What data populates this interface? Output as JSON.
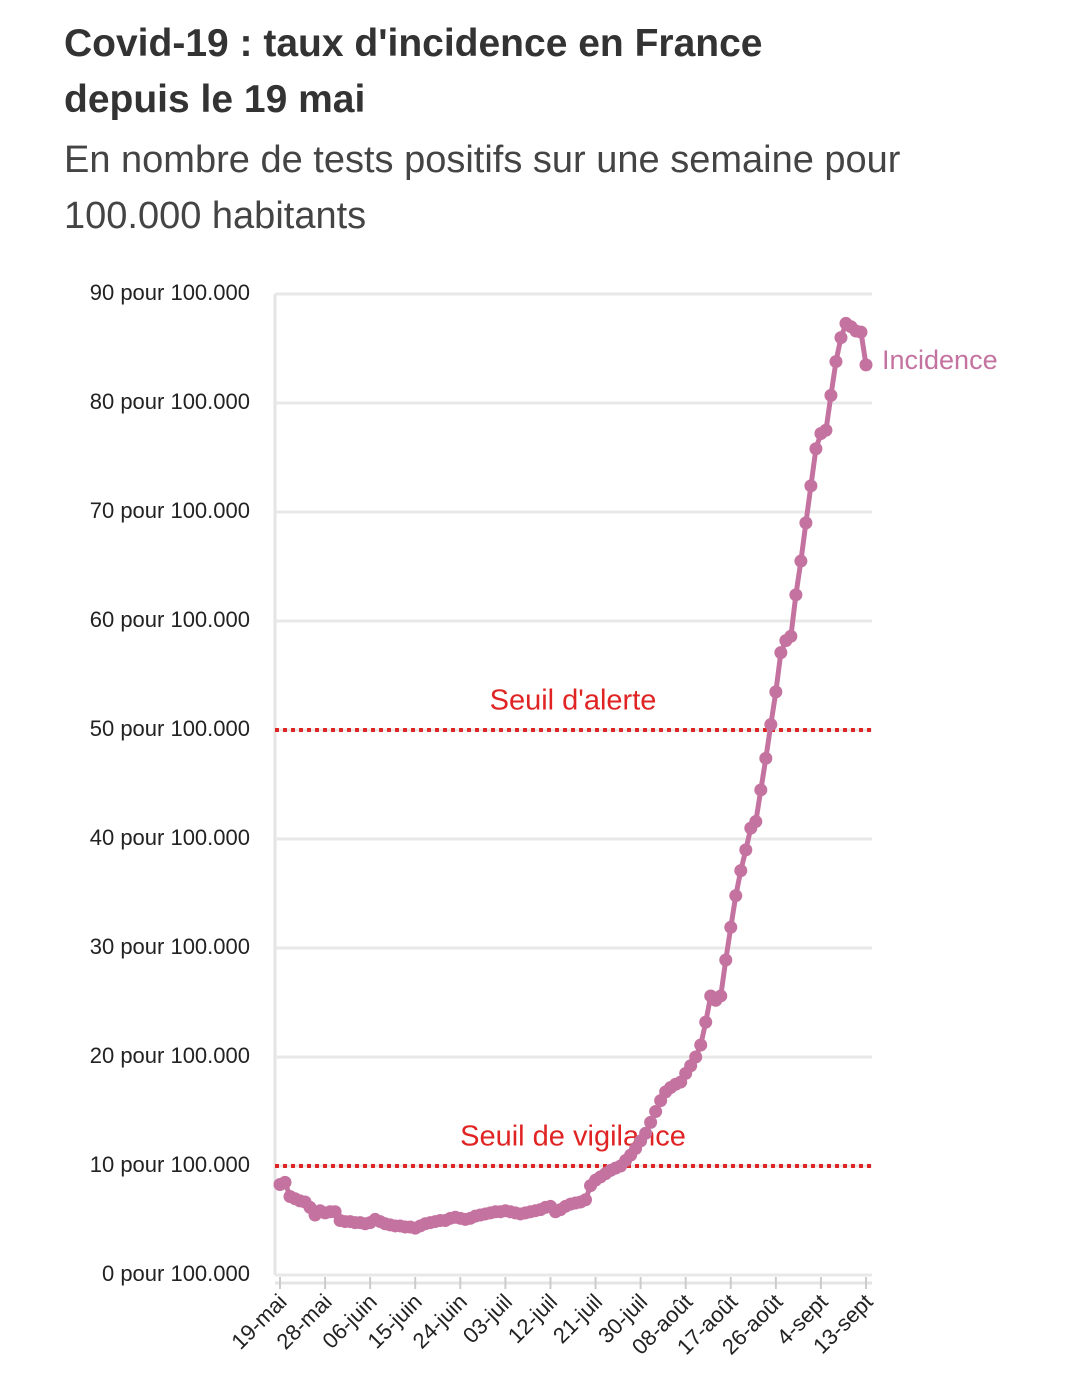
{
  "chart_data": {
    "type": "line",
    "title": "Covid-19 : taux d'incidence en France depuis le 19 mai",
    "subtitle": "En nombre de tests positifs sur une semaine pour 100.000 habitants",
    "categories": [
      "19-mai",
      null,
      null,
      null,
      null,
      null,
      null,
      null,
      null,
      "28-mai",
      null,
      null,
      null,
      null,
      null,
      null,
      null,
      null,
      "06-juin",
      null,
      null,
      null,
      null,
      null,
      null,
      null,
      null,
      "15-juin",
      null,
      null,
      null,
      null,
      null,
      null,
      null,
      null,
      "24-juin",
      null,
      null,
      null,
      null,
      null,
      null,
      null,
      null,
      "03-juil",
      null,
      null,
      null,
      null,
      null,
      null,
      null,
      null,
      "12-juil",
      null,
      null,
      null,
      null,
      null,
      null,
      null,
      null,
      "21-juil",
      null,
      null,
      null,
      null,
      null,
      null,
      null,
      null,
      "30-juil",
      null,
      null,
      null,
      null,
      null,
      null,
      null,
      null,
      "08-août",
      null,
      null,
      null,
      null,
      null,
      null,
      null,
      null,
      "17-août",
      null,
      null,
      null,
      null,
      null,
      null,
      null,
      null,
      "26-août",
      null,
      null,
      null,
      null,
      null,
      null,
      null,
      null,
      "4-sept",
      null,
      null,
      null,
      null,
      null,
      null,
      null,
      null,
      "13-sept"
    ],
    "series": [
      {
        "name": "Incidence",
        "color": "#c4729f",
        "values": [
          8.3,
          8.5,
          7.2,
          7.0,
          6.8,
          6.7,
          6.2,
          5.5,
          5.9,
          5.7,
          5.8,
          5.8,
          5.0,
          4.9,
          4.9,
          4.8,
          4.8,
          4.7,
          4.8,
          5.1,
          4.9,
          4.7,
          4.6,
          4.5,
          4.5,
          4.4,
          4.4,
          4.3,
          4.5,
          4.7,
          4.8,
          4.9,
          5.0,
          5.0,
          5.2,
          5.3,
          5.2,
          5.1,
          5.2,
          5.4,
          5.5,
          5.6,
          5.7,
          5.8,
          5.8,
          5.9,
          5.8,
          5.7,
          5.6,
          5.7,
          5.8,
          5.9,
          6.0,
          6.2,
          6.3,
          5.8,
          6.0,
          6.3,
          6.5,
          6.6,
          6.7,
          6.9,
          8.2,
          8.7,
          9.0,
          9.3,
          9.6,
          9.8,
          10.0,
          10.5,
          11.0,
          11.6,
          12.3,
          13.0,
          14.0,
          15.0,
          16.0,
          16.8,
          17.2,
          17.5,
          17.7,
          18.5,
          19.2,
          20.0,
          21.1,
          23.2,
          25.6,
          25.2,
          25.6,
          28.9,
          31.9,
          34.8,
          37.1,
          39.0,
          41.0,
          41.6,
          44.5,
          47.4,
          50.5,
          53.5,
          57.1,
          58.2,
          58.6,
          62.4,
          65.5,
          69.0,
          72.4,
          75.8,
          77.2,
          77.5,
          80.7,
          83.8,
          86.0,
          87.3,
          87.0,
          86.6,
          86.5,
          83.5
        ]
      }
    ],
    "ylim": [
      0,
      90
    ],
    "yticks": [
      {
        "value": 0,
        "label": "0 pour 100.000"
      },
      {
        "value": 10,
        "label": "10 pour 100.000"
      },
      {
        "value": 20,
        "label": "20 pour 100.000"
      },
      {
        "value": 30,
        "label": "30 pour 100.000"
      },
      {
        "value": 40,
        "label": "40 pour 100.000"
      },
      {
        "value": 50,
        "label": "50 pour 100.000"
      },
      {
        "value": 60,
        "label": "60 pour 100.000"
      },
      {
        "value": 70,
        "label": "70 pour 100.000"
      },
      {
        "value": 80,
        "label": "80 pour 100.000"
      },
      {
        "value": 90,
        "label": "90 pour 100.000"
      }
    ],
    "grid": true,
    "hlines": [
      {
        "value": 50,
        "label": "Seuil d'alerte",
        "color": "#e02424"
      },
      {
        "value": 10,
        "label": "Seuil de vigilance",
        "color": "#e02424"
      }
    ]
  }
}
